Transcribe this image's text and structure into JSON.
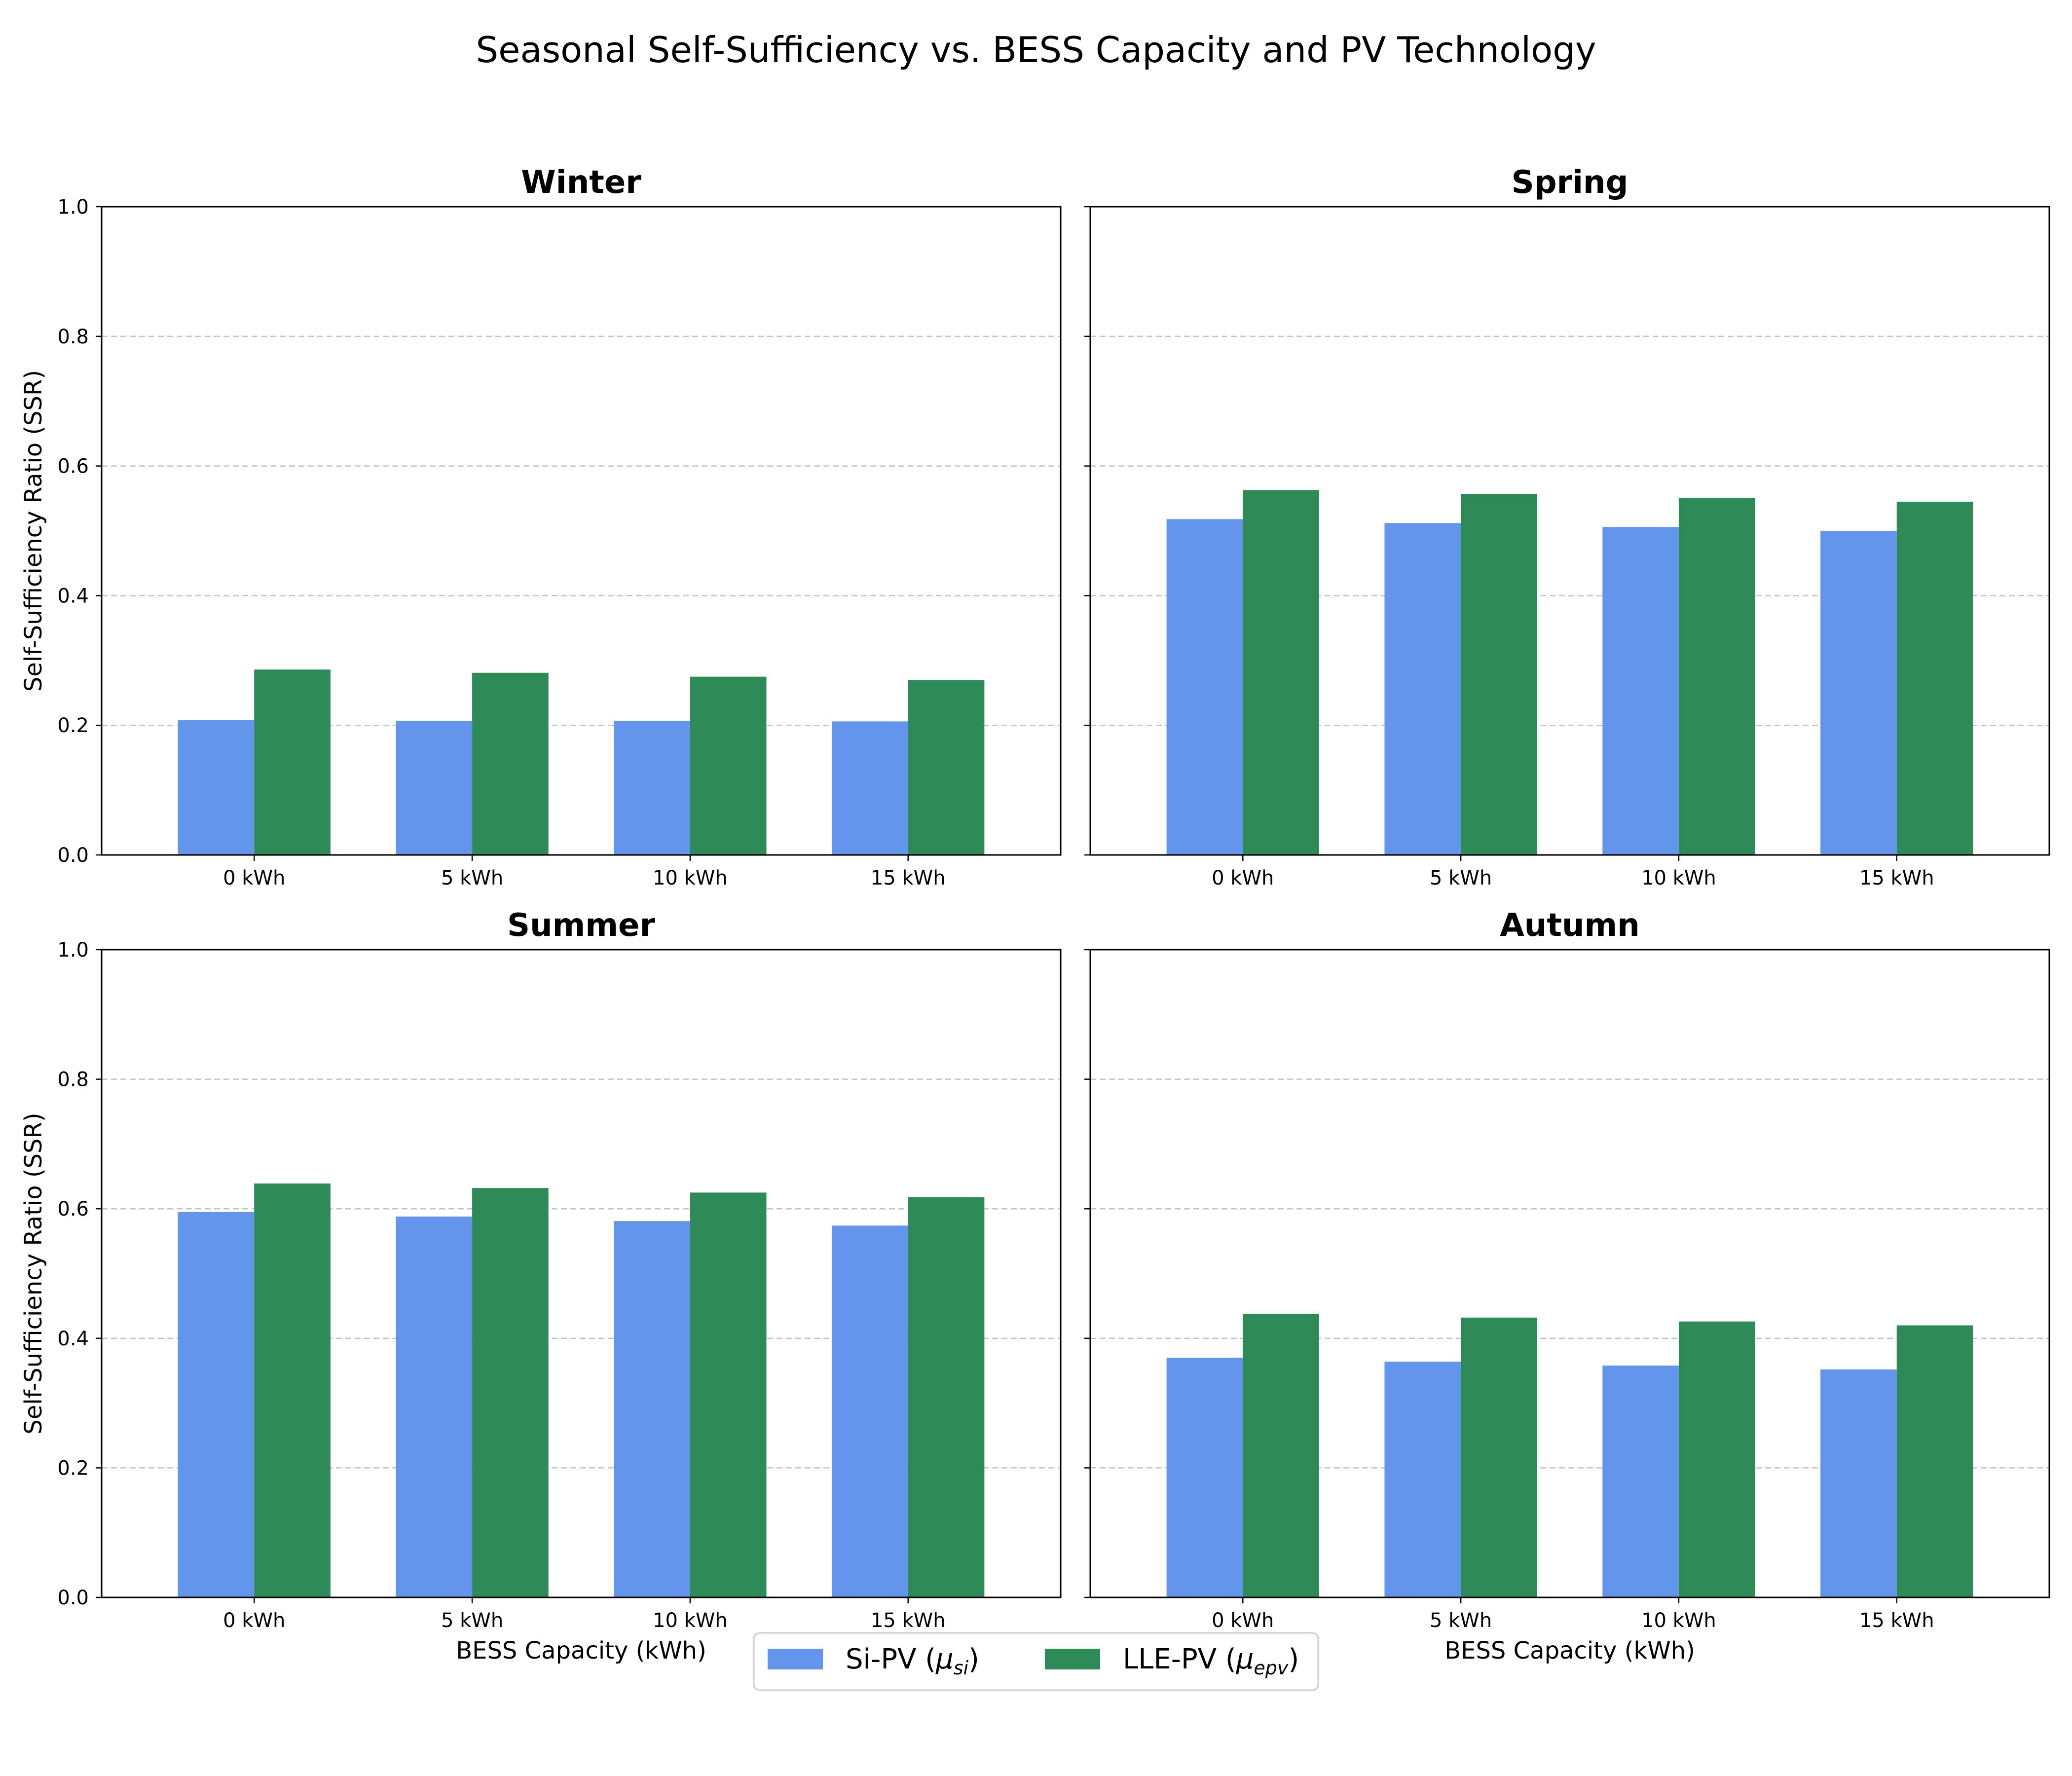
{
  "suptitle": "Seasonal Self-Sufficiency vs. BESS Capacity and PV Technology",
  "colors": {
    "si_pv": "#6495ED",
    "lle_pv": "#2E8B57"
  },
  "legend": {
    "placement": "bottom-center",
    "items": [
      {
        "prefix": "Si-PV (",
        "symbol": "μ",
        "sub": "si",
        "suffix": ")"
      },
      {
        "prefix": "LLE-PV (",
        "symbol": "μ",
        "sub": "epv",
        "suffix": ")"
      }
    ]
  },
  "chart_data": [
    {
      "type": "bar",
      "title": "Winter",
      "categories": [
        "0 kWh",
        "5 kWh",
        "10 kWh",
        "15 kWh"
      ],
      "series": [
        {
          "name": "Si-PV (μsi)",
          "values": [
            0.208,
            0.207,
            0.207,
            0.206
          ]
        },
        {
          "name": "LLE-PV (μepv)",
          "values": [
            0.286,
            0.281,
            0.275,
            0.27
          ]
        }
      ],
      "xlabel": "",
      "ylabel": "Self-Sufficiency Ratio (SSR)",
      "ylim": [
        0,
        1.0
      ],
      "yticks": [
        "0.0",
        "0.2",
        "0.4",
        "0.6",
        "0.8",
        "1.0"
      ],
      "grid": "y-dashed"
    },
    {
      "type": "bar",
      "title": "Spring",
      "categories": [
        "0 kWh",
        "5 kWh",
        "10 kWh",
        "15 kWh"
      ],
      "series": [
        {
          "name": "Si-PV (μsi)",
          "values": [
            0.518,
            0.512,
            0.506,
            0.5
          ]
        },
        {
          "name": "LLE-PV (μepv)",
          "values": [
            0.563,
            0.557,
            0.551,
            0.545
          ]
        }
      ],
      "xlabel": "",
      "ylabel": "",
      "ylim": [
        0,
        1.0
      ],
      "yticks": [],
      "grid": "y-dashed"
    },
    {
      "type": "bar",
      "title": "Summer",
      "categories": [
        "0 kWh",
        "5 kWh",
        "10 kWh",
        "15 kWh"
      ],
      "series": [
        {
          "name": "Si-PV (μsi)",
          "values": [
            0.595,
            0.588,
            0.581,
            0.574
          ]
        },
        {
          "name": "LLE-PV (μepv)",
          "values": [
            0.639,
            0.632,
            0.625,
            0.618
          ]
        }
      ],
      "xlabel": "BESS Capacity (kWh)",
      "ylabel": "Self-Sufficiency Ratio (SSR)",
      "ylim": [
        0,
        1.0
      ],
      "yticks": [
        "0.0",
        "0.2",
        "0.4",
        "0.6",
        "0.8",
        "1.0"
      ],
      "grid": "y-dashed"
    },
    {
      "type": "bar",
      "title": "Autumn",
      "categories": [
        "0 kWh",
        "5 kWh",
        "10 kWh",
        "15 kWh"
      ],
      "series": [
        {
          "name": "Si-PV (μsi)",
          "values": [
            0.37,
            0.364,
            0.358,
            0.352
          ]
        },
        {
          "name": "LLE-PV (μepv)",
          "values": [
            0.438,
            0.432,
            0.426,
            0.42
          ]
        }
      ],
      "xlabel": "BESS Capacity (kWh)",
      "ylabel": "",
      "ylim": [
        0,
        1.0
      ],
      "yticks": [],
      "grid": "y-dashed"
    }
  ]
}
